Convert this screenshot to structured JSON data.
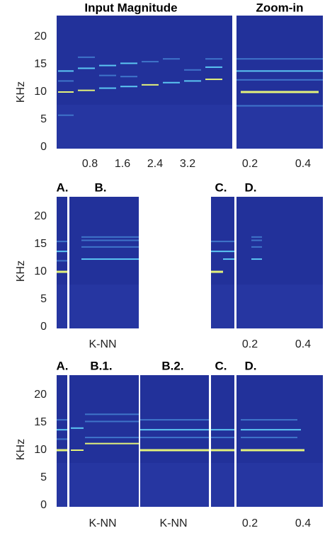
{
  "rows": [
    {
      "titles": [
        "Input Magnitude",
        "Zoom-in"
      ],
      "y_label": "KHz",
      "yticks": [
        0,
        5,
        10,
        15,
        20
      ],
      "x_labels": [
        "0.8",
        "1.6",
        "2.4",
        "3.2",
        "0.2",
        "0.4"
      ]
    },
    {
      "panel_labels": [
        "A.",
        "B.",
        "C.",
        "D."
      ],
      "y_label": "KHz",
      "yticks": [
        0,
        5,
        10,
        15,
        20
      ],
      "x_labels": [
        "K-NN",
        "0.2",
        "0.4"
      ]
    },
    {
      "panel_labels": [
        "A.",
        "B.1.",
        "B.2.",
        "C.",
        "D."
      ],
      "y_label": "KHz",
      "yticks": [
        0,
        5,
        10,
        15,
        20
      ],
      "x_labels": [
        "K-NN",
        "K-NN",
        "0.2",
        "0.4"
      ]
    }
  ]
}
